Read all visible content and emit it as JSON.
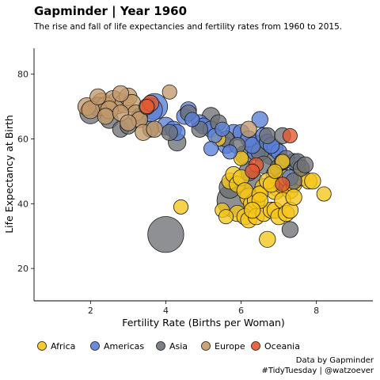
{
  "chart_data": {
    "type": "scatter",
    "title": "Gapminder | Year 1960",
    "subtitle": "The rise and fall of life expectancies and fertility rates from 1960 to 2015.",
    "xlabel": "Fertility Rate (Births per Woman)",
    "ylabel": "Life Expectancy at Birth",
    "xlim": [
      0.5,
      9.5
    ],
    "ylim": [
      10,
      88
    ],
    "x_ticks": [
      2,
      4,
      6,
      8
    ],
    "y_ticks": [
      20,
      40,
      60,
      80
    ],
    "grid": false,
    "legend_position": "bottom",
    "caption": [
      "Data by Gapminder",
      "#TidyTuesday | @watzoever"
    ],
    "size_note": "point size encodes population",
    "series": [
      {
        "name": "Africa",
        "color": "#F5C518",
        "points": [
          [
            5.4,
            60,
            2
          ],
          [
            5.7,
            47,
            3
          ],
          [
            5.8,
            49,
            3
          ],
          [
            5.9,
            46,
            3
          ],
          [
            6.0,
            48,
            3
          ],
          [
            6.1,
            44,
            3
          ],
          [
            6.2,
            42,
            4
          ],
          [
            6.3,
            40,
            4
          ],
          [
            6.4,
            41,
            4
          ],
          [
            6.5,
            43,
            3
          ],
          [
            6.6,
            45,
            4
          ],
          [
            6.7,
            47,
            3
          ],
          [
            6.8,
            46,
            3
          ],
          [
            6.9,
            44,
            4
          ],
          [
            7.0,
            45,
            5
          ],
          [
            7.1,
            46,
            4
          ],
          [
            7.2,
            48,
            3
          ],
          [
            7.3,
            44,
            3
          ],
          [
            7.4,
            46,
            3
          ],
          [
            7.5,
            50,
            3
          ],
          [
            7.6,
            48,
            3
          ],
          [
            7.8,
            47,
            3
          ],
          [
            7.9,
            47,
            3
          ],
          [
            8.2,
            43,
            2
          ],
          [
            5.5,
            38,
            2
          ],
          [
            5.6,
            36,
            2
          ],
          [
            5.9,
            37,
            3
          ],
          [
            6.1,
            36,
            3
          ],
          [
            6.2,
            35,
            3
          ],
          [
            6.4,
            36,
            3
          ],
          [
            6.6,
            37,
            3
          ],
          [
            6.7,
            29,
            3
          ],
          [
            6.8,
            38,
            3
          ],
          [
            6.9,
            38,
            3
          ],
          [
            7.0,
            36,
            3
          ],
          [
            7.1,
            41,
            3
          ],
          [
            7.2,
            37,
            3
          ],
          [
            7.3,
            38,
            3
          ],
          [
            7.5,
            52,
            3
          ],
          [
            7.1,
            53,
            2
          ],
          [
            6.9,
            50,
            2
          ],
          [
            6.5,
            41,
            3
          ],
          [
            6.3,
            38,
            3
          ],
          [
            4.4,
            39,
            2
          ],
          [
            6.0,
            54,
            2
          ],
          [
            7.4,
            42,
            3
          ]
        ]
      },
      {
        "name": "Americas",
        "color": "#5A7FD6",
        "points": [
          [
            3.7,
            70,
            12
          ],
          [
            3.6,
            69,
            9
          ],
          [
            4.0,
            64,
            4
          ],
          [
            4.2,
            63,
            3
          ],
          [
            4.3,
            62,
            3
          ],
          [
            4.5,
            67,
            3
          ],
          [
            4.6,
            69,
            3
          ],
          [
            4.7,
            66,
            2
          ],
          [
            4.9,
            65,
            3
          ],
          [
            5.0,
            64,
            3
          ],
          [
            5.2,
            63,
            3
          ],
          [
            5.3,
            61,
            2
          ],
          [
            5.5,
            63,
            2
          ],
          [
            5.6,
            58,
            3
          ],
          [
            5.7,
            56,
            2
          ],
          [
            5.8,
            62,
            3
          ],
          [
            6.0,
            62,
            3
          ],
          [
            6.2,
            60,
            3
          ],
          [
            6.3,
            58,
            3
          ],
          [
            6.5,
            66,
            3
          ],
          [
            6.6,
            61,
            3
          ],
          [
            6.7,
            59,
            3
          ],
          [
            6.9,
            57,
            3
          ],
          [
            7.0,
            56,
            3
          ],
          [
            7.1,
            53,
            3
          ],
          [
            7.3,
            48,
            3
          ],
          [
            7.4,
            53,
            3
          ],
          [
            6.4,
            56,
            4
          ],
          [
            6.8,
            58,
            3
          ],
          [
            5.2,
            57,
            2
          ]
        ]
      },
      {
        "name": "Asia",
        "color": "#6E7175",
        "points": [
          [
            4.0,
            30.5,
            27
          ],
          [
            5.8,
            41,
            22
          ],
          [
            2.0,
            68,
            7
          ],
          [
            2.2,
            70,
            5
          ],
          [
            2.5,
            66,
            4
          ],
          [
            2.8,
            63,
            3
          ],
          [
            3.0,
            64,
            3
          ],
          [
            3.3,
            67,
            3
          ],
          [
            3.6,
            63,
            3
          ],
          [
            4.1,
            62,
            3
          ],
          [
            4.3,
            59,
            4
          ],
          [
            4.6,
            68,
            3
          ],
          [
            4.9,
            63,
            3
          ],
          [
            5.2,
            67,
            4
          ],
          [
            5.4,
            65,
            3
          ],
          [
            5.6,
            60,
            3
          ],
          [
            5.7,
            45,
            7
          ],
          [
            5.9,
            58,
            3
          ],
          [
            6.1,
            55,
            5
          ],
          [
            6.2,
            50,
            5
          ],
          [
            6.3,
            47,
            6
          ],
          [
            6.4,
            58,
            6
          ],
          [
            6.5,
            56,
            4
          ],
          [
            6.6,
            52,
            4
          ],
          [
            6.8,
            55,
            5
          ],
          [
            6.9,
            49,
            4
          ],
          [
            7.0,
            51,
            4
          ],
          [
            7.1,
            47,
            4
          ],
          [
            7.2,
            54,
            3
          ],
          [
            7.3,
            32,
            3
          ],
          [
            7.4,
            47,
            3
          ],
          [
            7.5,
            53,
            3
          ],
          [
            7.6,
            51,
            3
          ],
          [
            7.7,
            52,
            3
          ],
          [
            6.7,
            61,
            3
          ],
          [
            7.1,
            61,
            3
          ]
        ]
      },
      {
        "name": "Europe",
        "color": "#C39A6B",
        "points": [
          [
            1.9,
            70,
            4
          ],
          [
            2.0,
            69,
            4
          ],
          [
            2.2,
            73,
            3
          ],
          [
            2.3,
            71,
            6
          ],
          [
            2.4,
            70,
            5
          ],
          [
            2.5,
            69,
            4
          ],
          [
            2.6,
            72,
            5
          ],
          [
            2.7,
            71,
            7
          ],
          [
            2.8,
            74,
            3
          ],
          [
            2.9,
            71,
            5
          ],
          [
            3.0,
            73,
            4
          ],
          [
            3.1,
            71,
            4
          ],
          [
            3.2,
            68,
            3
          ],
          [
            3.3,
            66,
            3
          ],
          [
            3.5,
            70,
            3
          ],
          [
            2.4,
            67,
            3
          ],
          [
            2.8,
            68,
            3
          ],
          [
            3.0,
            65,
            3
          ],
          [
            3.4,
            62,
            3
          ],
          [
            3.7,
            63,
            3
          ],
          [
            4.1,
            74.5,
            2
          ],
          [
            6.2,
            63,
            3
          ]
        ]
      },
      {
        "name": "Oceania",
        "color": "#E4572E",
        "points": [
          [
            3.6,
            71,
            3
          ],
          [
            3.5,
            70,
            2
          ],
          [
            6.4,
            52,
            2
          ],
          [
            7.1,
            46,
            2
          ],
          [
            7.3,
            61,
            2
          ],
          [
            6.3,
            50,
            2
          ]
        ]
      }
    ]
  }
}
